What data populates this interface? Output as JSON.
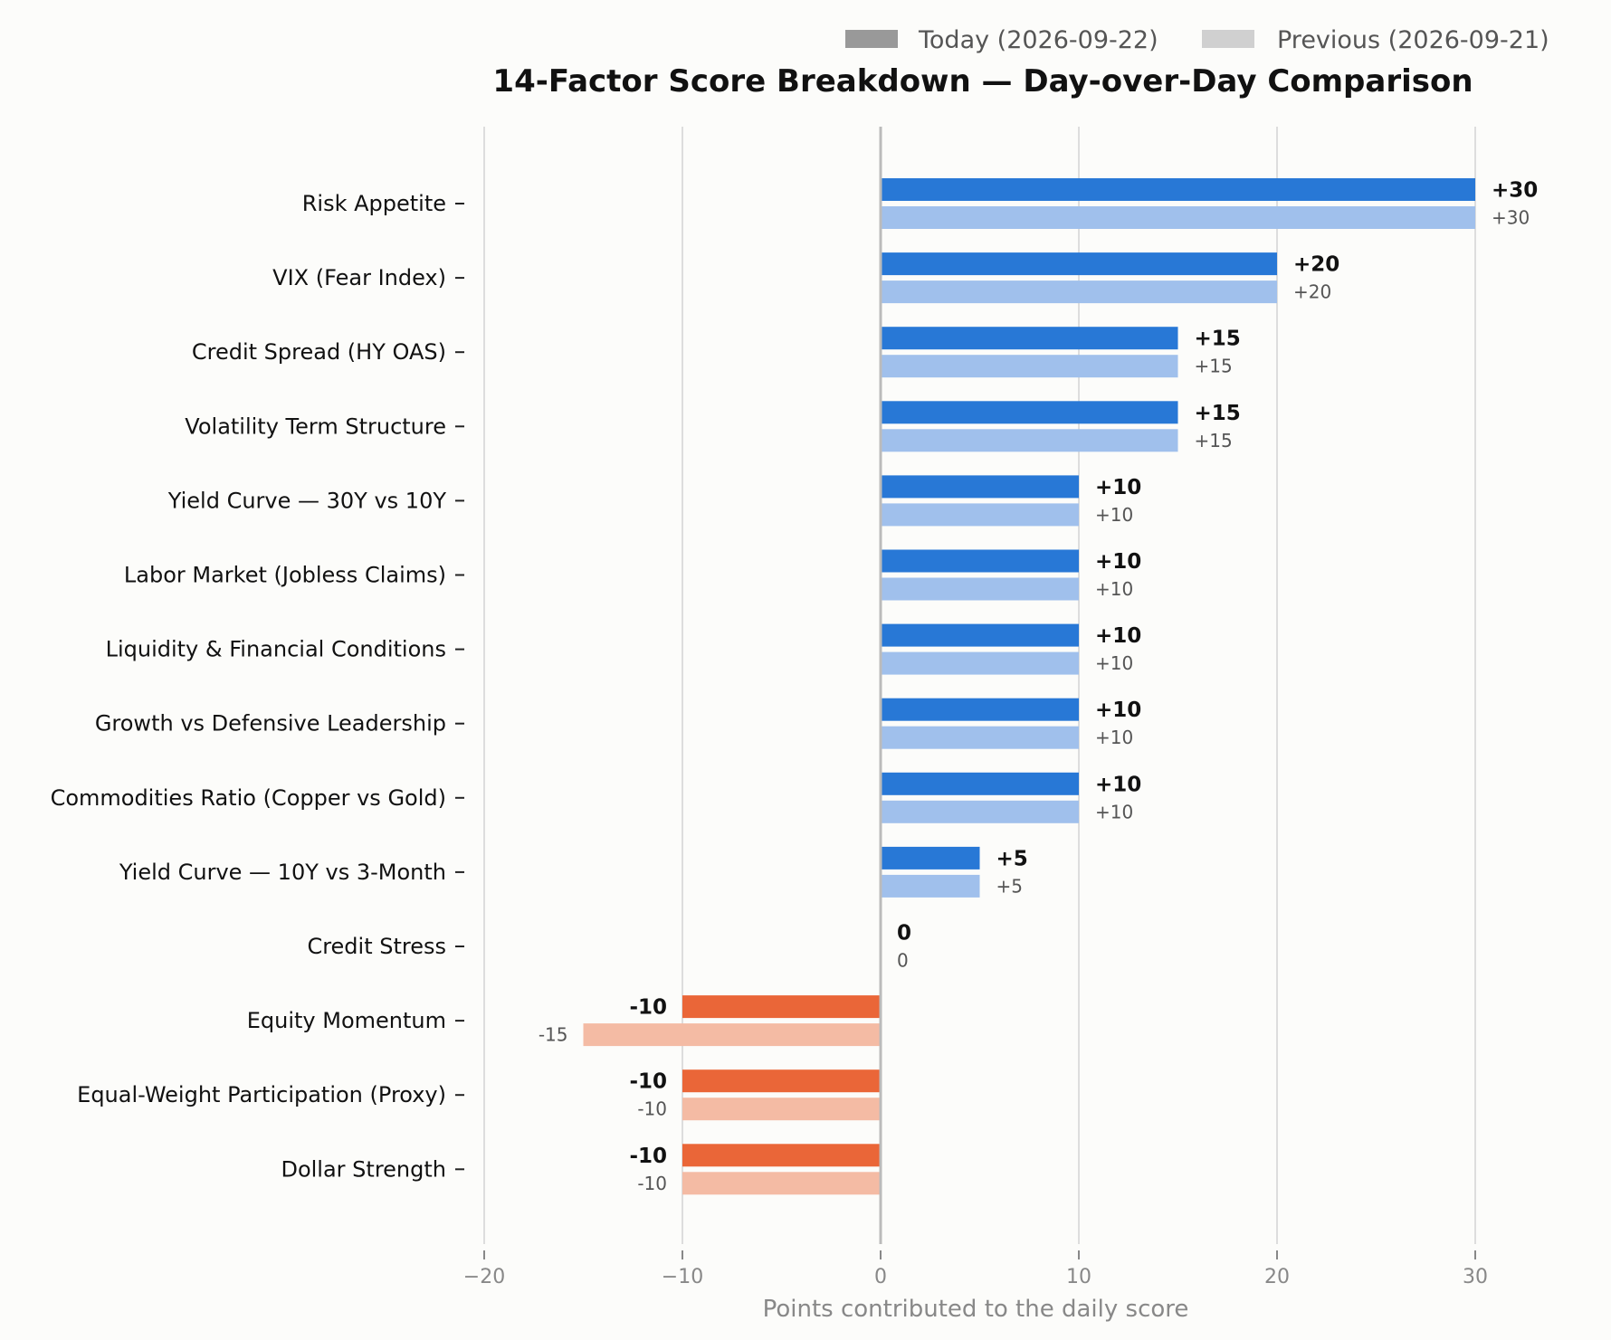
{
  "chart_data": {
    "type": "bar",
    "orientation": "horizontal",
    "title": "14-Factor Score Breakdown — Day-over-Day Comparison",
    "xlabel": "Points contributed to the daily score",
    "ylabel": "",
    "xlim": [
      -20,
      30
    ],
    "xticks": [
      -20,
      -10,
      0,
      10,
      20,
      30
    ],
    "grid": "vertical",
    "legend_position": "top-right",
    "categories": [
      "Risk Appetite",
      "VIX (Fear Index)",
      "Credit Spread (HY OAS)",
      "Volatility Term Structure",
      "Yield Curve — 30Y vs 10Y",
      "Labor Market (Jobless Claims)",
      "Liquidity & Financial Conditions",
      "Growth vs Defensive Leadership",
      "Commodities Ratio (Copper vs Gold)",
      "Yield Curve — 10Y vs 3-Month",
      "Credit Stress",
      "Equity Momentum",
      "Equal-Weight Participation (Proxy)",
      "Dollar Strength"
    ],
    "series": [
      {
        "name": "Today (2026-09-22)",
        "values": [
          30,
          20,
          15,
          15,
          10,
          10,
          10,
          10,
          10,
          5,
          0,
          -10,
          -10,
          -10
        ],
        "labels": [
          "+30",
          "+20",
          "+15",
          "+15",
          "+10",
          "+10",
          "+10",
          "+10",
          "+10",
          "+5",
          "0",
          "-10",
          "-10",
          "-10"
        ]
      },
      {
        "name": "Previous (2026-09-21)",
        "values": [
          30,
          20,
          15,
          15,
          10,
          10,
          10,
          10,
          10,
          5,
          0,
          -15,
          -10,
          -10
        ],
        "labels": [
          "+30",
          "+20",
          "+15",
          "+15",
          "+10",
          "+10",
          "+10",
          "+10",
          "+10",
          "+5",
          "0",
          "-15",
          "-10",
          "-10"
        ]
      }
    ],
    "colors": {
      "today_positive": "#2878d6",
      "today_negative": "#ea6638",
      "previous_positive": "#a0c0ec",
      "previous_negative": "#f4bba4",
      "legend_today": "#999999",
      "legend_previous": "#d0d0d0",
      "grid": "#dddddd",
      "zero_line": "#bbbbbb"
    }
  }
}
